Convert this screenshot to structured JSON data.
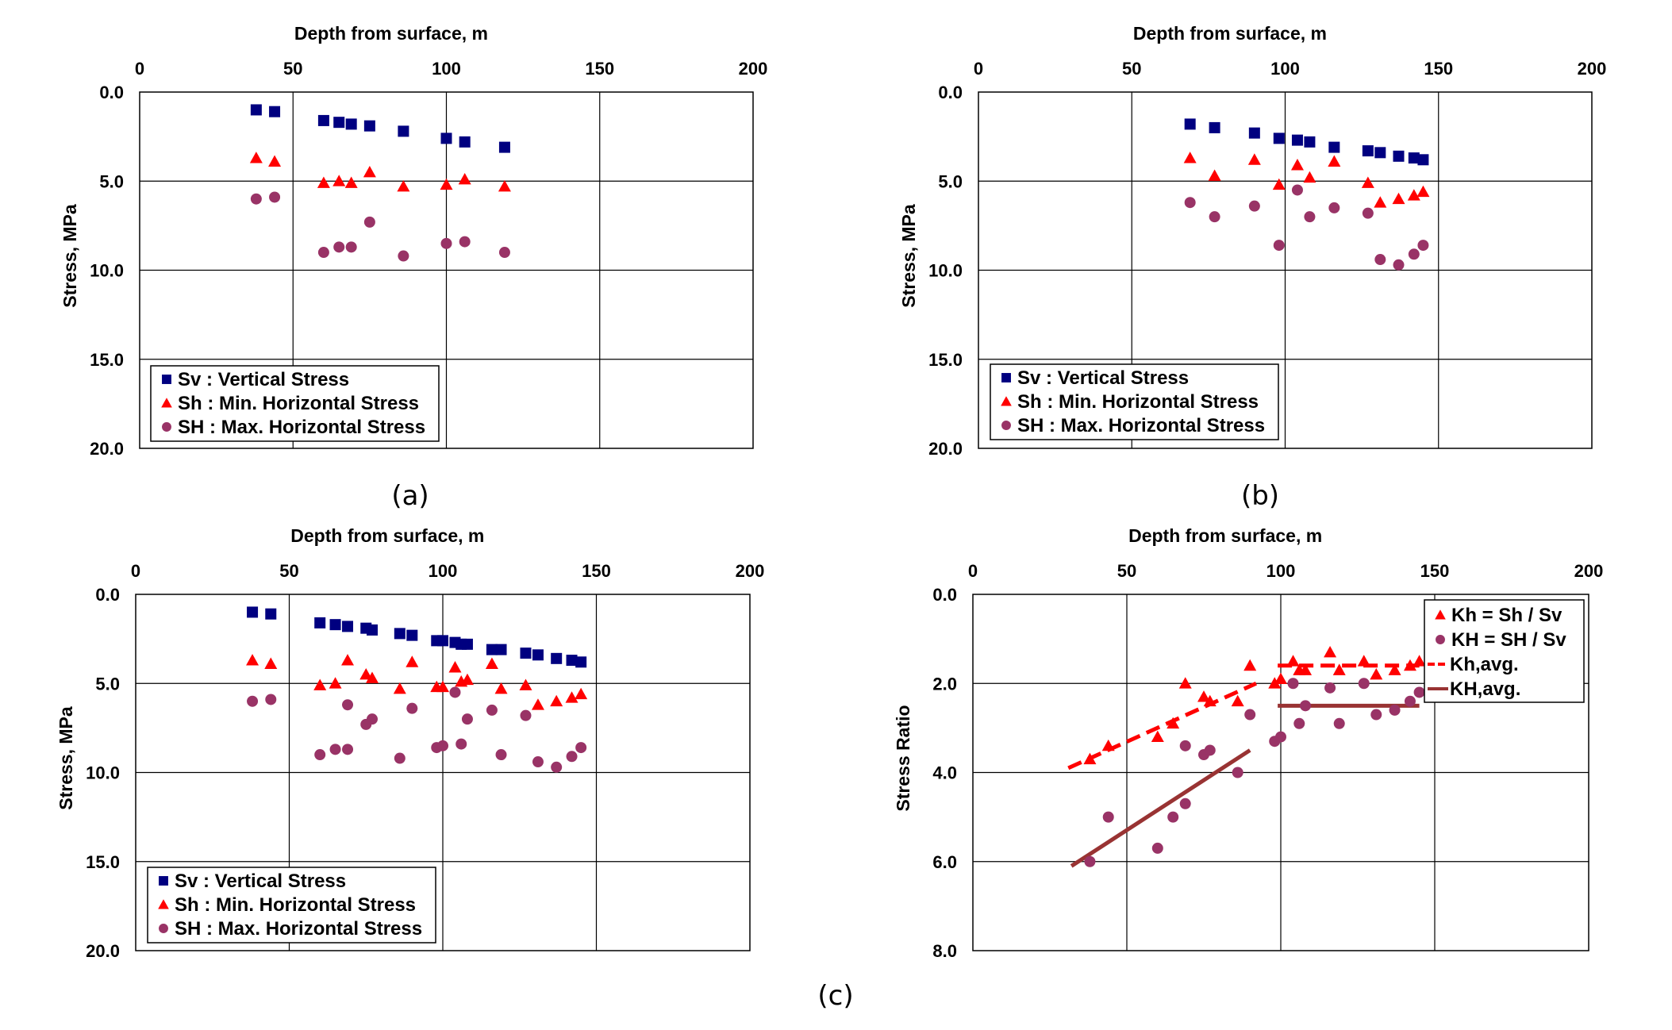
{
  "colors": {
    "sv": "#000080",
    "sh_min": "#ff0000",
    "sh_max": "#993366",
    "kh_line": "#ff0000",
    "KH_line": "#993333",
    "grid": "#000000"
  },
  "captions": {
    "a": "(a)",
    "b": "(b)",
    "c": "(c)"
  },
  "chart_data": [
    {
      "id": "a",
      "type": "scatter",
      "xlabel": "Depth from surface, m",
      "ylabel": "Stress, MPa",
      "x_axis_position": "top",
      "y_axis_inverted": true,
      "xlim": [
        0,
        200
      ],
      "ylim": [
        0,
        20
      ],
      "xticks": [
        "0",
        "50",
        "100",
        "150",
        "200"
      ],
      "yticks": [
        "0.0",
        "5.0",
        "10.0",
        "15.0",
        "20.0"
      ],
      "grid": true,
      "legend_position": "bottom-left",
      "series": [
        {
          "name": "Sv : Vertical Stress",
          "marker": "square",
          "color": "#000080",
          "x": [
            38,
            44,
            60,
            65,
            69,
            75,
            86,
            100,
            106,
            119
          ],
          "y": [
            1.0,
            1.1,
            1.6,
            1.7,
            1.8,
            1.9,
            2.2,
            2.6,
            2.8,
            3.1
          ]
        },
        {
          "name": "Sh : Min. Horizontal Stress",
          "marker": "triangle",
          "color": "#ff0000",
          "x": [
            38,
            44,
            60,
            65,
            69,
            75,
            86,
            100,
            106,
            119
          ],
          "y": [
            3.7,
            3.9,
            5.1,
            5.0,
            5.1,
            4.5,
            5.3,
            5.2,
            4.9,
            5.3
          ]
        },
        {
          "name": "SH : Max. Horizontal Stress",
          "marker": "circle",
          "color": "#993366",
          "x": [
            38,
            44,
            60,
            65,
            69,
            75,
            86,
            100,
            106,
            119
          ],
          "y": [
            6.0,
            5.9,
            9.0,
            8.7,
            8.7,
            7.3,
            9.2,
            8.5,
            8.4,
            9.0
          ]
        }
      ]
    },
    {
      "id": "b",
      "type": "scatter",
      "xlabel": "Depth from surface, m",
      "ylabel": "Stress, MPa",
      "x_axis_position": "top",
      "y_axis_inverted": true,
      "xlim": [
        0,
        200
      ],
      "ylim": [
        0,
        20
      ],
      "xticks": [
        "0",
        "50",
        "100",
        "150",
        "200"
      ],
      "yticks": [
        "0.0",
        "5.0",
        "10.0",
        "15.0",
        "20.0"
      ],
      "grid": true,
      "legend_position": "bottom-left",
      "series": [
        {
          "name": "Sv : Vertical Stress",
          "marker": "square",
          "color": "#000080",
          "x": [
            69,
            77,
            90,
            98,
            104,
            108,
            116,
            127,
            131,
            137,
            142,
            145
          ],
          "y": [
            1.8,
            2.0,
            2.3,
            2.6,
            2.7,
            2.8,
            3.1,
            3.3,
            3.4,
            3.6,
            3.7,
            3.8
          ]
        },
        {
          "name": "Sh : Min. Horizontal Stress",
          "marker": "triangle",
          "color": "#ff0000",
          "x": [
            69,
            77,
            90,
            98,
            104,
            108,
            116,
            127,
            131,
            137,
            142,
            145
          ],
          "y": [
            3.7,
            4.7,
            3.8,
            5.2,
            4.1,
            4.8,
            3.9,
            5.1,
            6.2,
            6.0,
            5.8,
            5.6
          ]
        },
        {
          "name": "SH : Max. Horizontal Stress",
          "marker": "circle",
          "color": "#993366",
          "x": [
            69,
            77,
            90,
            98,
            104,
            108,
            116,
            127,
            131,
            137,
            142,
            145
          ],
          "y": [
            6.2,
            7.0,
            6.4,
            8.6,
            5.5,
            7.0,
            6.5,
            6.8,
            9.4,
            9.7,
            9.1,
            8.6
          ]
        }
      ]
    },
    {
      "id": "c",
      "type": "scatter",
      "xlabel": "Depth from surface, m",
      "ylabel": "Stress, MPa",
      "x_axis_position": "top",
      "y_axis_inverted": true,
      "xlim": [
        0,
        200
      ],
      "ylim": [
        0,
        20
      ],
      "xticks": [
        "0",
        "50",
        "100",
        "150",
        "200"
      ],
      "yticks": [
        "0.0",
        "5.0",
        "10.0",
        "15.0",
        "20.0"
      ],
      "grid": true,
      "legend_position": "bottom-left",
      "series": [
        {
          "name": "Sv : Vertical Stress",
          "marker": "square",
          "color": "#000080",
          "x": [
            38,
            44,
            60,
            65,
            69,
            75,
            77,
            86,
            90,
            98,
            100,
            104,
            106,
            108,
            116,
            119,
            127,
            131,
            137,
            142,
            145
          ],
          "y": [
            1.0,
            1.1,
            1.6,
            1.7,
            1.8,
            1.9,
            2.0,
            2.2,
            2.3,
            2.6,
            2.6,
            2.7,
            2.8,
            2.8,
            3.1,
            3.1,
            3.3,
            3.4,
            3.6,
            3.7,
            3.8
          ]
        },
        {
          "name": "Sh : Min. Horizontal Stress",
          "marker": "triangle",
          "color": "#ff0000",
          "x": [
            38,
            44,
            60,
            65,
            69,
            75,
            77,
            86,
            90,
            98,
            100,
            104,
            106,
            108,
            116,
            119,
            127,
            131,
            137,
            142,
            145
          ],
          "y": [
            3.7,
            3.9,
            5.1,
            5.0,
            3.7,
            4.5,
            4.7,
            5.3,
            3.8,
            5.2,
            5.2,
            4.1,
            4.9,
            4.8,
            3.9,
            5.3,
            5.1,
            6.2,
            6.0,
            5.8,
            5.6
          ]
        },
        {
          "name": "SH : Max. Horizontal Stress",
          "marker": "circle",
          "color": "#993366",
          "x": [
            38,
            44,
            60,
            65,
            69,
            69,
            75,
            77,
            86,
            90,
            98,
            100,
            104,
            106,
            108,
            116,
            119,
            127,
            131,
            137,
            142,
            145
          ],
          "y": [
            6.0,
            5.9,
            9.0,
            8.7,
            8.7,
            6.2,
            7.3,
            7.0,
            9.2,
            6.4,
            8.6,
            8.5,
            5.5,
            8.4,
            7.0,
            6.5,
            9.0,
            6.8,
            9.4,
            9.7,
            9.1,
            8.6
          ]
        }
      ]
    },
    {
      "id": "d",
      "type": "scatter",
      "xlabel": "Depth from surface, m",
      "ylabel": "Stress Ratio",
      "x_axis_position": "top",
      "y_axis_inverted": true,
      "xlim": [
        0,
        200
      ],
      "ylim": [
        0,
        8
      ],
      "xticks": [
        "0",
        "50",
        "100",
        "150",
        "200"
      ],
      "yticks": [
        "0.0",
        "2.0",
        "4.0",
        "6.0",
        "8.0"
      ],
      "grid": true,
      "legend_position": "top-right",
      "series": [
        {
          "name": "Kh = Sh / Sv",
          "marker": "triangle",
          "color": "#ff0000",
          "x": [
            38,
            44,
            60,
            65,
            69,
            75,
            77,
            86,
            90,
            98,
            100,
            104,
            106,
            108,
            116,
            119,
            127,
            131,
            137,
            142,
            145
          ],
          "y": [
            3.7,
            3.4,
            3.2,
            2.9,
            2.0,
            2.3,
            2.4,
            2.4,
            1.6,
            2.0,
            1.9,
            1.5,
            1.7,
            1.7,
            1.3,
            1.7,
            1.5,
            1.8,
            1.7,
            1.6,
            1.5
          ]
        },
        {
          "name": "KH = SH / Sv",
          "marker": "circle",
          "color": "#993366",
          "x": [
            38,
            44,
            60,
            65,
            69,
            69,
            75,
            77,
            86,
            90,
            98,
            100,
            104,
            106,
            108,
            116,
            119,
            127,
            131,
            137,
            142,
            145
          ],
          "y": [
            6.0,
            5.0,
            5.7,
            5.0,
            4.7,
            3.4,
            3.6,
            3.5,
            4.0,
            2.7,
            3.3,
            3.2,
            2.0,
            2.9,
            2.5,
            2.1,
            2.9,
            2.0,
            2.7,
            2.6,
            2.4,
            2.2
          ]
        }
      ],
      "trend_lines": [
        {
          "name": "Kh,avg.",
          "style": "dashed",
          "color": "#ff0000",
          "segments": [
            {
              "x": [
                31,
                92
              ],
              "y": [
                3.9,
                2.0
              ]
            },
            {
              "x": [
                99,
                145
              ],
              "y": [
                1.6,
                1.6
              ]
            }
          ]
        },
        {
          "name": "KH,avg.",
          "style": "solid",
          "color": "#993333",
          "segments": [
            {
              "x": [
                32,
                90
              ],
              "y": [
                6.1,
                3.5
              ]
            },
            {
              "x": [
                99,
                145
              ],
              "y": [
                2.5,
                2.5
              ]
            }
          ]
        }
      ]
    }
  ]
}
